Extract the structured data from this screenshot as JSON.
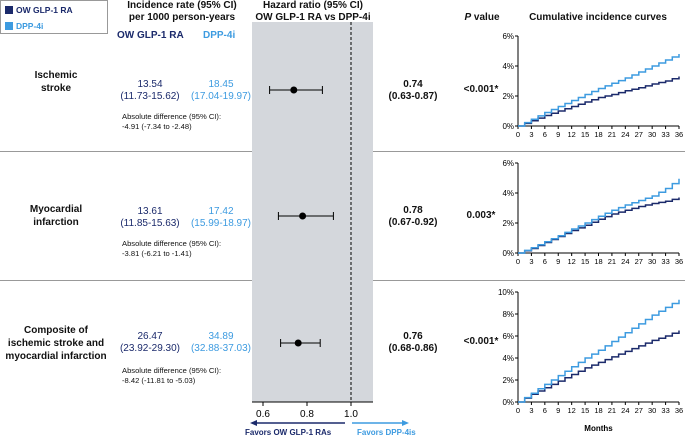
{
  "legend": {
    "items": [
      {
        "label": "OW GLP-1 RA",
        "color": "#1b2a6b"
      },
      {
        "label": "DPP-4i",
        "color": "#3d9be0"
      }
    ]
  },
  "headers": {
    "incidence": [
      "Incidence rate (95% CI)",
      "per 1000 person-years"
    ],
    "hazard": [
      "Hazard ratio (95% CI)",
      "OW GLP-1 RA vs DPP-4i"
    ],
    "p_prefix": "P",
    "p_suffix": " value",
    "curves": "Cumulative incidence curves",
    "col_glp1": "OW GLP-1 RA",
    "col_dpp4": "DPP-4i"
  },
  "colors": {
    "glp1": "#1b2a6b",
    "dpp4": "#3d9be0",
    "shade": "#d4d7dc"
  },
  "rows": [
    {
      "label": [
        "Ischemic",
        "stroke"
      ],
      "glp1_rate": "13.54",
      "glp1_ci": "(11.73-15.62)",
      "dpp4_rate": "18.45",
      "dpp4_ci": "(17.04-19.97)",
      "abs_title": "Absolute difference (95% CI):",
      "abs_value": "-4.91 (-7.34 to -2.48)",
      "hr": "0.74",
      "hr_ci": "(0.63-0.87)",
      "p": "<0.001*"
    },
    {
      "label": [
        "Myocardial",
        "infarction"
      ],
      "glp1_rate": "13.61",
      "glp1_ci": "(11.85-15.63)",
      "dpp4_rate": "17.42",
      "dpp4_ci": "(15.99-18.97)",
      "abs_title": "Absolute difference (95% CI):",
      "abs_value": "-3.81 (-6.21 to -1.41)",
      "hr": "0.78",
      "hr_ci": "(0.67-0.92)",
      "p": "0.003*"
    },
    {
      "label": [
        "Composite of",
        "ischemic stroke and",
        "myocardial infarction"
      ],
      "glp1_rate": "26.47",
      "glp1_ci": "(23.92-29.30)",
      "dpp4_rate": "34.89",
      "dpp4_ci": "(32.88-37.03)",
      "abs_title": "Absolute difference (95% CI):",
      "abs_value": "-8.42 (-11.81 to -5.03)",
      "hr": "0.76",
      "hr_ci": "(0.68-0.86)",
      "p": "<0.001*"
    }
  ],
  "forest_axis": {
    "ticks": [
      "0.6",
      "0.8",
      "1.0"
    ],
    "favors_left": "Favors OW GLP-1 RAs",
    "favors_right": "Favors DPP-4is"
  },
  "curve_axis": {
    "xlabel": "Months",
    "xticks": [
      "0",
      "3",
      "6",
      "9",
      "12",
      "15",
      "18",
      "21",
      "24",
      "27",
      "30",
      "33",
      "36"
    ]
  },
  "chart_data": [
    {
      "type": "scatter",
      "name": "forest plot",
      "categories": [
        "Ischemic stroke",
        "Myocardial infarction",
        "Composite of ischemic stroke and myocardial infarction"
      ],
      "estimates": [
        0.74,
        0.78,
        0.76
      ],
      "ci_low": [
        0.63,
        0.67,
        0.68
      ],
      "ci_high": [
        0.87,
        0.92,
        0.86
      ],
      "xlim": [
        0.55,
        1.1
      ],
      "xticks": [
        0.6,
        0.8,
        1.0
      ],
      "reference_line": 1.0
    },
    {
      "type": "line",
      "x": [
        0,
        3,
        6,
        9,
        12,
        15,
        18,
        21,
        24,
        27,
        30,
        33,
        36
      ],
      "yticks": [
        "0%",
        "2%",
        "4%",
        "6%"
      ],
      "ylim": [
        0,
        6
      ],
      "series": [
        {
          "name": "OW GLP-1 RA",
          "values": [
            0,
            0.35,
            0.7,
            1.0,
            1.3,
            1.6,
            1.9,
            2.1,
            2.35,
            2.55,
            2.8,
            3.0,
            3.3
          ]
        },
        {
          "name": "DPP-4i",
          "values": [
            0,
            0.45,
            0.9,
            1.3,
            1.7,
            2.1,
            2.5,
            2.85,
            3.2,
            3.6,
            4.0,
            4.4,
            4.8
          ]
        }
      ]
    },
    {
      "type": "line",
      "x": [
        0,
        3,
        6,
        9,
        12,
        15,
        18,
        21,
        24,
        27,
        30,
        33,
        36
      ],
      "yticks": [
        "0%",
        "2%",
        "4%",
        "6%"
      ],
      "ylim": [
        0,
        6
      ],
      "series": [
        {
          "name": "OW GLP-1 RA",
          "values": [
            0,
            0.3,
            0.7,
            1.1,
            1.5,
            1.85,
            2.25,
            2.6,
            2.85,
            3.1,
            3.3,
            3.45,
            3.7
          ]
        },
        {
          "name": "DPP-4i",
          "values": [
            0,
            0.35,
            0.75,
            1.15,
            1.6,
            2.0,
            2.45,
            2.85,
            3.2,
            3.5,
            3.8,
            4.3,
            4.95
          ]
        }
      ]
    },
    {
      "type": "line",
      "x": [
        0,
        3,
        6,
        9,
        12,
        15,
        18,
        21,
        24,
        27,
        30,
        33,
        36
      ],
      "yticks": [
        "0%",
        "2%",
        "4%",
        "6%",
        "8%",
        "10%"
      ],
      "ylim": [
        0,
        10
      ],
      "series": [
        {
          "name": "OW GLP-1 RA",
          "values": [
            0,
            0.7,
            1.3,
            1.9,
            2.5,
            3.1,
            3.6,
            4.1,
            4.6,
            5.1,
            5.6,
            6.0,
            6.5
          ]
        },
        {
          "name": "DPP-4i",
          "values": [
            0,
            0.8,
            1.6,
            2.4,
            3.2,
            4.0,
            4.7,
            5.5,
            6.3,
            7.1,
            7.9,
            8.6,
            9.3
          ]
        }
      ]
    }
  ]
}
